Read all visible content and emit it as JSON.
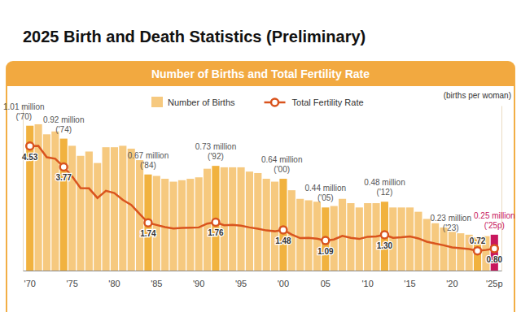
{
  "header": {
    "title": "2025 Birth and Death Statistics (Preliminary)"
  },
  "chart_data": {
    "type": "bar",
    "title": "Number of Births and Total Fertility Rate",
    "y2label": "(births per woman)",
    "categories": [
      "'70",
      null,
      null,
      null,
      null,
      "'75",
      null,
      null,
      null,
      null,
      "'80",
      null,
      null,
      null,
      null,
      "'85",
      null,
      null,
      null,
      null,
      "'90",
      null,
      null,
      null,
      null,
      "'95",
      null,
      null,
      null,
      null,
      "'00",
      null,
      null,
      null,
      null,
      "05",
      null,
      null,
      null,
      null,
      "'10",
      null,
      null,
      null,
      null,
      "'15",
      null,
      null,
      null,
      null,
      "'20",
      null,
      null,
      null,
      null,
      "'25p"
    ],
    "ylim": [
      0,
      1.15
    ],
    "yticks": [],
    "y2lim": [
      0,
      6
    ],
    "y2ticks": [],
    "tick_labels": "x",
    "legend": "top",
    "data_labels": true,
    "series": [
      {
        "name": "Number of Births",
        "type": "bar",
        "color": "#F6C97F",
        "colors": [
          "#F1B23F",
          "#F6C97F",
          "#F6C97F",
          "#F6C97F",
          "#F1B23F",
          "#F6C97F",
          "#F6C97F",
          "#F6C97F",
          "#F6C97F",
          "#F6C97F",
          "#F6C97F",
          "#F6C97F",
          "#F6C97F",
          "#F6C97F",
          "#F1B23F",
          "#F6C97F",
          "#F6C97F",
          "#F6C97F",
          "#F6C97F",
          "#F6C97F",
          "#F6C97F",
          "#F6C97F",
          "#F1B23F",
          "#F6C97F",
          "#F6C97F",
          "#F6C97F",
          "#F6C97F",
          "#F6C97F",
          "#F6C97F",
          "#F6C97F",
          "#F1B23F",
          "#F6C97F",
          "#F6C97F",
          "#F6C97F",
          "#F6C97F",
          "#F1B23F",
          "#F6C97F",
          "#F6C97F",
          "#F6C97F",
          "#F6C97F",
          "#F6C97F",
          "#F6C97F",
          "#F1B23F",
          "#F6C97F",
          "#F6C97F",
          "#F6C97F",
          "#F6C97F",
          "#F6C97F",
          "#F6C97F",
          "#F6C97F",
          "#F6C97F",
          "#F6C97F",
          "#F6C97F",
          "#F1B23F",
          "#F6C97F",
          "#C8175D"
        ],
        "values": [
          1.01,
          1.02,
          0.95,
          0.97,
          0.92,
          0.87,
          0.8,
          0.83,
          0.75,
          0.86,
          0.86,
          0.87,
          0.85,
          0.77,
          0.67,
          0.66,
          0.64,
          0.62,
          0.63,
          0.64,
          0.65,
          0.71,
          0.73,
          0.72,
          0.72,
          0.72,
          0.69,
          0.68,
          0.64,
          0.62,
          0.64,
          0.56,
          0.5,
          0.49,
          0.48,
          0.44,
          0.45,
          0.5,
          0.47,
          0.44,
          0.47,
          0.47,
          0.48,
          0.44,
          0.44,
          0.44,
          0.41,
          0.36,
          0.33,
          0.3,
          0.27,
          0.26,
          0.25,
          0.23,
          0.24,
          0.25
        ],
        "value_labels": [
          [
            "1.01 million",
            "('70)"
          ],
          null,
          null,
          null,
          [
            "0.92 million",
            "('74)"
          ],
          null,
          null,
          null,
          null,
          null,
          null,
          null,
          null,
          null,
          [
            "0.67 million",
            "('84)"
          ],
          null,
          null,
          null,
          null,
          null,
          null,
          null,
          [
            "0.73 million",
            "('92)"
          ],
          null,
          null,
          null,
          null,
          null,
          null,
          null,
          [
            "0.64 million",
            "('00)"
          ],
          null,
          null,
          null,
          null,
          [
            "0.44 million",
            "('05)"
          ],
          null,
          null,
          null,
          null,
          null,
          null,
          [
            "0.48 million",
            "('12)"
          ],
          null,
          null,
          null,
          null,
          null,
          null,
          null,
          null,
          null,
          null,
          [
            "0.23 million",
            "('23)"
          ],
          null,
          [
            "0.25 million",
            "('25p)"
          ]
        ]
      },
      {
        "name": "Total Fertility Rate",
        "type": "line",
        "axis": "y2",
        "color": "#D9541E",
        "marker": "circle",
        "values": [
          4.53,
          4.54,
          4.12,
          4.07,
          3.77,
          3.43,
          3.0,
          2.99,
          2.64,
          2.9,
          2.82,
          2.57,
          2.39,
          2.06,
          1.74,
          1.66,
          1.58,
          1.53,
          1.55,
          1.56,
          1.57,
          1.71,
          1.76,
          1.65,
          1.66,
          1.63,
          1.57,
          1.52,
          1.46,
          1.43,
          1.48,
          1.31,
          1.18,
          1.19,
          1.16,
          1.09,
          1.13,
          1.26,
          1.19,
          1.15,
          1.23,
          1.24,
          1.3,
          1.19,
          1.21,
          1.24,
          1.17,
          1.05,
          0.98,
          0.92,
          0.84,
          0.81,
          0.78,
          0.72,
          0.75,
          0.8
        ],
        "value_labels": [
          "4.53",
          null,
          null,
          null,
          "3.77",
          null,
          null,
          null,
          null,
          null,
          null,
          null,
          null,
          null,
          "1.74",
          null,
          null,
          null,
          null,
          null,
          null,
          null,
          "1.76",
          null,
          null,
          null,
          null,
          null,
          null,
          null,
          "1.48",
          null,
          null,
          null,
          null,
          "1.09",
          null,
          null,
          null,
          null,
          null,
          null,
          "1.30",
          null,
          null,
          null,
          null,
          null,
          null,
          null,
          null,
          null,
          null,
          "0.72",
          null,
          "0.80"
        ]
      }
    ]
  }
}
